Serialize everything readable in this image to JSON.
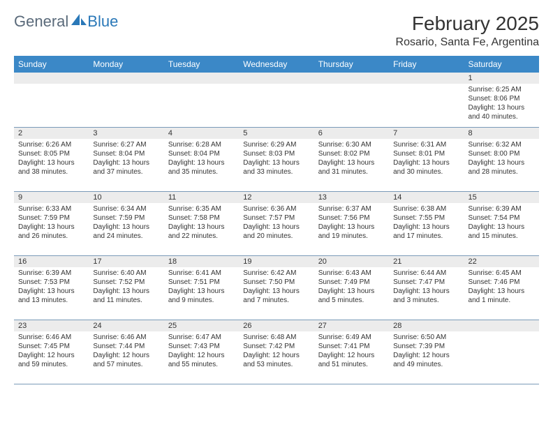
{
  "logo": {
    "text_general": "General",
    "text_blue": "Blue",
    "icon_color": "#2a78b8"
  },
  "header": {
    "month_title": "February 2025",
    "location": "Rosario, Santa Fe, Argentina"
  },
  "styling": {
    "header_bg": "#3b88c7",
    "header_text": "#ffffff",
    "daynum_bg": "#ececec",
    "border_color": "#7a9ab8",
    "body_text": "#333333",
    "logo_gray": "#5a6a7a",
    "logo_blue": "#2a78b8",
    "page_bg": "#ffffff",
    "title_fontsize": 28,
    "location_fontsize": 16,
    "weekday_fontsize": 12,
    "daynum_fontsize": 11,
    "content_fontsize": 10
  },
  "weekdays": [
    "Sunday",
    "Monday",
    "Tuesday",
    "Wednesday",
    "Thursday",
    "Friday",
    "Saturday"
  ],
  "weeks": [
    [
      null,
      null,
      null,
      null,
      null,
      null,
      {
        "day": "1",
        "sunrise": "Sunrise: 6:25 AM",
        "sunset": "Sunset: 8:06 PM",
        "daylight": "Daylight: 13 hours and 40 minutes."
      }
    ],
    [
      {
        "day": "2",
        "sunrise": "Sunrise: 6:26 AM",
        "sunset": "Sunset: 8:05 PM",
        "daylight": "Daylight: 13 hours and 38 minutes."
      },
      {
        "day": "3",
        "sunrise": "Sunrise: 6:27 AM",
        "sunset": "Sunset: 8:04 PM",
        "daylight": "Daylight: 13 hours and 37 minutes."
      },
      {
        "day": "4",
        "sunrise": "Sunrise: 6:28 AM",
        "sunset": "Sunset: 8:04 PM",
        "daylight": "Daylight: 13 hours and 35 minutes."
      },
      {
        "day": "5",
        "sunrise": "Sunrise: 6:29 AM",
        "sunset": "Sunset: 8:03 PM",
        "daylight": "Daylight: 13 hours and 33 minutes."
      },
      {
        "day": "6",
        "sunrise": "Sunrise: 6:30 AM",
        "sunset": "Sunset: 8:02 PM",
        "daylight": "Daylight: 13 hours and 31 minutes."
      },
      {
        "day": "7",
        "sunrise": "Sunrise: 6:31 AM",
        "sunset": "Sunset: 8:01 PM",
        "daylight": "Daylight: 13 hours and 30 minutes."
      },
      {
        "day": "8",
        "sunrise": "Sunrise: 6:32 AM",
        "sunset": "Sunset: 8:00 PM",
        "daylight": "Daylight: 13 hours and 28 minutes."
      }
    ],
    [
      {
        "day": "9",
        "sunrise": "Sunrise: 6:33 AM",
        "sunset": "Sunset: 7:59 PM",
        "daylight": "Daylight: 13 hours and 26 minutes."
      },
      {
        "day": "10",
        "sunrise": "Sunrise: 6:34 AM",
        "sunset": "Sunset: 7:59 PM",
        "daylight": "Daylight: 13 hours and 24 minutes."
      },
      {
        "day": "11",
        "sunrise": "Sunrise: 6:35 AM",
        "sunset": "Sunset: 7:58 PM",
        "daylight": "Daylight: 13 hours and 22 minutes."
      },
      {
        "day": "12",
        "sunrise": "Sunrise: 6:36 AM",
        "sunset": "Sunset: 7:57 PM",
        "daylight": "Daylight: 13 hours and 20 minutes."
      },
      {
        "day": "13",
        "sunrise": "Sunrise: 6:37 AM",
        "sunset": "Sunset: 7:56 PM",
        "daylight": "Daylight: 13 hours and 19 minutes."
      },
      {
        "day": "14",
        "sunrise": "Sunrise: 6:38 AM",
        "sunset": "Sunset: 7:55 PM",
        "daylight": "Daylight: 13 hours and 17 minutes."
      },
      {
        "day": "15",
        "sunrise": "Sunrise: 6:39 AM",
        "sunset": "Sunset: 7:54 PM",
        "daylight": "Daylight: 13 hours and 15 minutes."
      }
    ],
    [
      {
        "day": "16",
        "sunrise": "Sunrise: 6:39 AM",
        "sunset": "Sunset: 7:53 PM",
        "daylight": "Daylight: 13 hours and 13 minutes."
      },
      {
        "day": "17",
        "sunrise": "Sunrise: 6:40 AM",
        "sunset": "Sunset: 7:52 PM",
        "daylight": "Daylight: 13 hours and 11 minutes."
      },
      {
        "day": "18",
        "sunrise": "Sunrise: 6:41 AM",
        "sunset": "Sunset: 7:51 PM",
        "daylight": "Daylight: 13 hours and 9 minutes."
      },
      {
        "day": "19",
        "sunrise": "Sunrise: 6:42 AM",
        "sunset": "Sunset: 7:50 PM",
        "daylight": "Daylight: 13 hours and 7 minutes."
      },
      {
        "day": "20",
        "sunrise": "Sunrise: 6:43 AM",
        "sunset": "Sunset: 7:49 PM",
        "daylight": "Daylight: 13 hours and 5 minutes."
      },
      {
        "day": "21",
        "sunrise": "Sunrise: 6:44 AM",
        "sunset": "Sunset: 7:47 PM",
        "daylight": "Daylight: 13 hours and 3 minutes."
      },
      {
        "day": "22",
        "sunrise": "Sunrise: 6:45 AM",
        "sunset": "Sunset: 7:46 PM",
        "daylight": "Daylight: 13 hours and 1 minute."
      }
    ],
    [
      {
        "day": "23",
        "sunrise": "Sunrise: 6:46 AM",
        "sunset": "Sunset: 7:45 PM",
        "daylight": "Daylight: 12 hours and 59 minutes."
      },
      {
        "day": "24",
        "sunrise": "Sunrise: 6:46 AM",
        "sunset": "Sunset: 7:44 PM",
        "daylight": "Daylight: 12 hours and 57 minutes."
      },
      {
        "day": "25",
        "sunrise": "Sunrise: 6:47 AM",
        "sunset": "Sunset: 7:43 PM",
        "daylight": "Daylight: 12 hours and 55 minutes."
      },
      {
        "day": "26",
        "sunrise": "Sunrise: 6:48 AM",
        "sunset": "Sunset: 7:42 PM",
        "daylight": "Daylight: 12 hours and 53 minutes."
      },
      {
        "day": "27",
        "sunrise": "Sunrise: 6:49 AM",
        "sunset": "Sunset: 7:41 PM",
        "daylight": "Daylight: 12 hours and 51 minutes."
      },
      {
        "day": "28",
        "sunrise": "Sunrise: 6:50 AM",
        "sunset": "Sunset: 7:39 PM",
        "daylight": "Daylight: 12 hours and 49 minutes."
      },
      null
    ]
  ]
}
